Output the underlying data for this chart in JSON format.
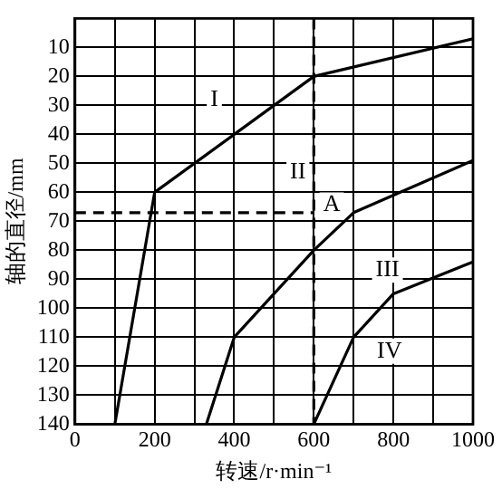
{
  "chart_data": {
    "type": "line",
    "xlabel": "转速/r·min⁻¹",
    "ylabel": "轴的直径/mm",
    "xlim": [
      0,
      1000
    ],
    "xticks": [
      0,
      {
        "value": 100,
        "label": null
      },
      200,
      {
        "value": 300,
        "label": null
      },
      400,
      {
        "value": 500,
        "label": null
      },
      600,
      {
        "value": 700,
        "label": null
      },
      800,
      {
        "value": 900,
        "label": null
      },
      1000
    ],
    "ylim": [
      140,
      0
    ],
    "yticks": [
      {
        "value": 0,
        "label": null
      },
      10,
      20,
      30,
      40,
      50,
      60,
      70,
      80,
      90,
      100,
      110,
      120,
      130,
      140
    ],
    "grid": true,
    "legend": false,
    "marker": "none",
    "series": [
      {
        "color": "#000000",
        "x": [
          100,
          200,
          400,
          600,
          1000
        ],
        "values": [
          140,
          60,
          40,
          20,
          7
        ]
      },
      {
        "color": "#000000",
        "x": [
          330,
          400,
          600,
          700,
          1000
        ],
        "values": [
          140,
          110,
          80,
          67,
          49
        ]
      },
      {
        "color": "#000000",
        "x": [
          600,
          700,
          800,
          1000
        ],
        "values": [
          140,
          110,
          95,
          84
        ]
      },
      {
        "color": "#000000",
        "x": [
          0,
          600
        ],
        "values": [
          67,
          67
        ],
        "line_style": "dashed"
      },
      {
        "color": "#000000",
        "x": [
          600,
          600
        ],
        "values": [
          0,
          140
        ],
        "line_style": "dashed"
      }
    ],
    "annotations": [
      "I",
      "II",
      "A",
      "III",
      "IV"
    ]
  }
}
